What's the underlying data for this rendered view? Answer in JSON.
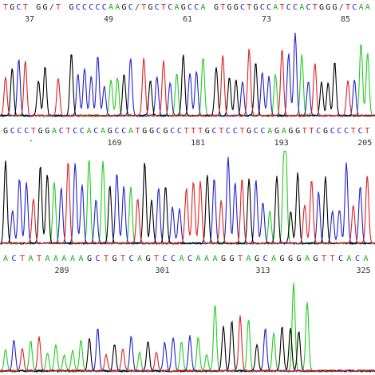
{
  "chart_data": {
    "type": "line",
    "rows": [
      {
        "sequence": "TGCT GG/T GCCCCCAAGC/TGCTCAGCCA GTGGCTGCCATCCACTGGG/TCAA",
        "ticks": [
          {
            "label": "37",
            "pos": 37
          },
          {
            "label": "49",
            "pos": 49
          },
          {
            "label": "61",
            "pos": 61
          },
          {
            "label": "73",
            "pos": 73
          },
          {
            "label": "85",
            "pos": 85
          }
        ]
      },
      {
        "sequence": "GCCCTGGACTCCACAGCCATGGCGCCTTTGCTCCTGCCAGAGGTTCGCCCTCT",
        "ticks": [
          {
            "label": "'",
            "pos": 157
          },
          {
            "label": "169",
            "pos": 169
          },
          {
            "label": "181",
            "pos": 181
          },
          {
            "label": "193",
            "pos": 193
          },
          {
            "label": "205",
            "pos": 205
          }
        ]
      },
      {
        "sequence": "ACTATAAAAAGCTGTCAGTCCACAAAGGTAGCAGGGAGTTCACA",
        "ticks": [
          {
            "label": "289",
            "pos": 289
          },
          {
            "label": "301",
            "pos": 301
          },
          {
            "label": "313",
            "pos": 313
          },
          {
            "label": "325",
            "pos": 325
          }
        ]
      }
    ],
    "base_colors": {
      "A": "#1aa81a",
      "C": "#1a1acc",
      "G": "#111111",
      "T": "#dd2222"
    },
    "trace_colors": {
      "A": "#22cc22",
      "C": "#2222cc",
      "G": "#000000",
      "T": "#dd2222"
    }
  }
}
